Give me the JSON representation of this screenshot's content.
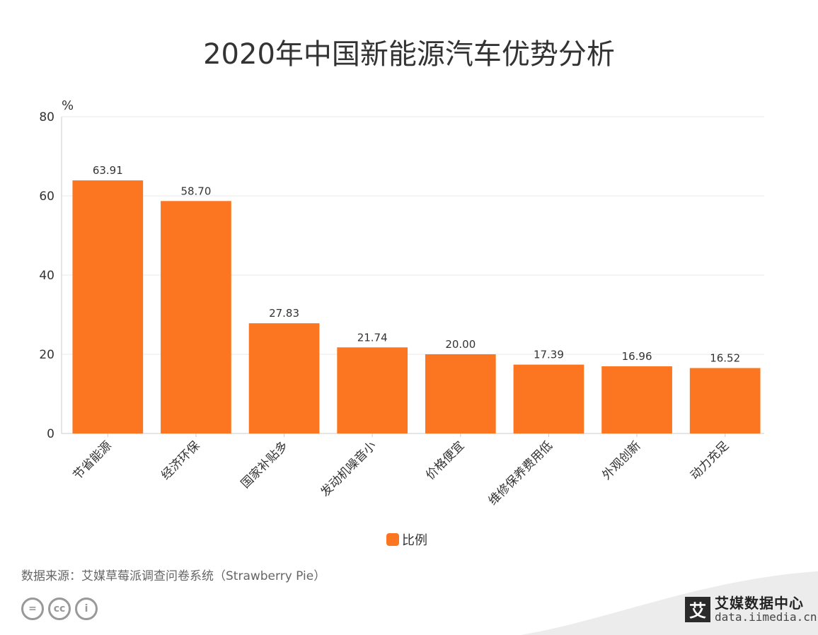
{
  "chart_data": {
    "type": "bar",
    "title": "2020年中国新能源汽车优势分析",
    "ylabel": "%",
    "xlabel": "",
    "ylim": [
      0,
      80
    ],
    "yticks": [
      0,
      20,
      40,
      60,
      80
    ],
    "categories": [
      "节省能源",
      "经济环保",
      "国家补贴多",
      "发动机噪音小",
      "价格便宜",
      "维修保养费用低",
      "外观创新",
      "动力充足"
    ],
    "series": [
      {
        "name": "比例",
        "values": [
          63.91,
          58.7,
          27.83,
          21.74,
          20.0,
          17.39,
          16.96,
          16.52
        ],
        "labels": [
          "63.91",
          "58.70",
          "27.83",
          "21.74",
          "20.00",
          "17.39",
          "16.96",
          "16.52"
        ],
        "color": "#fc7520"
      }
    ],
    "grid": true,
    "legend_position": "bottom"
  },
  "footer": {
    "source": "数据来源：艾媒草莓派调查问卷系统（Strawberry Pie）",
    "cc_icons": [
      "equals-icon",
      "cc-icon",
      "person-icon"
    ],
    "cc_glyphs": [
      "=",
      "cc",
      "i"
    ]
  },
  "brand": {
    "logo_char": "艾",
    "name": "艾媒数据中心",
    "url": "data.iimedia.cn"
  },
  "colors": {
    "bar": "#fc7520",
    "grid": "#e8e8e8",
    "axis": "#cccccc"
  }
}
